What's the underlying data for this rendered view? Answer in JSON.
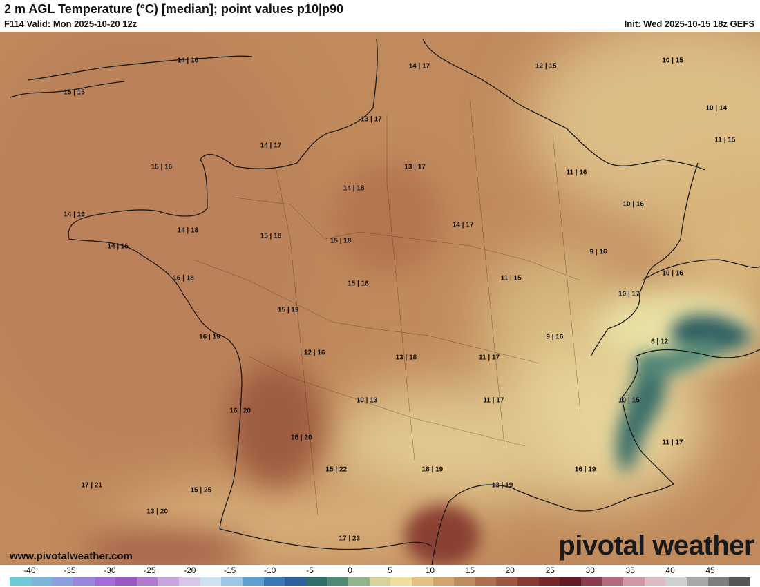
{
  "header": {
    "title": "2 m AGL Temperature (°C) [median]; point values p10|p90",
    "valid": "F114 Valid: Mon 2025-10-20 12z",
    "init": "Init: Wed 2025-10-15 18z GEFS"
  },
  "footer": {
    "website": "www.pivotalweather.com",
    "brand": "pivotal weather"
  },
  "point_values": [
    {
      "label": "14 | 16",
      "lon": -1.6,
      "lat": 51.0
    },
    {
      "label": "15 | 15",
      "lon": -4.2,
      "lat": 50.4
    },
    {
      "label": "14 | 17",
      "lon": 3.7,
      "lat": 50.9
    },
    {
      "label": "12 | 15",
      "lon": 6.6,
      "lat": 50.9
    },
    {
      "label": "10 | 15",
      "lon": 9.5,
      "lat": 51.0
    },
    {
      "label": "10 | 14",
      "lon": 10.5,
      "lat": 50.1
    },
    {
      "label": "13 | 17",
      "lon": 2.6,
      "lat": 49.9
    },
    {
      "label": "11 | 15",
      "lon": 10.7,
      "lat": 49.5
    },
    {
      "label": "14 | 17",
      "lon": 0.3,
      "lat": 49.4
    },
    {
      "label": "15 | 16",
      "lon": -2.2,
      "lat": 49.0
    },
    {
      "label": "13 | 17",
      "lon": 3.6,
      "lat": 49.0
    },
    {
      "label": "11 | 16",
      "lon": 7.3,
      "lat": 48.9
    },
    {
      "label": "14 | 18",
      "lon": 2.2,
      "lat": 48.6
    },
    {
      "label": "10 | 16",
      "lon": 8.6,
      "lat": 48.3
    },
    {
      "label": "14 | 16",
      "lon": -4.2,
      "lat": 48.1
    },
    {
      "label": "14 | 18",
      "lon": -1.6,
      "lat": 47.8
    },
    {
      "label": "15 | 18",
      "lon": 0.3,
      "lat": 47.7
    },
    {
      "label": "15 | 18",
      "lon": 1.9,
      "lat": 47.6
    },
    {
      "label": "14 | 17",
      "lon": 4.7,
      "lat": 47.9
    },
    {
      "label": "14 | 16",
      "lon": -3.2,
      "lat": 47.5
    },
    {
      "label": "9 | 16",
      "lon": 7.8,
      "lat": 47.4
    },
    {
      "label": "16 | 18",
      "lon": -1.7,
      "lat": 46.9
    },
    {
      "label": "11 | 15",
      "lon": 5.8,
      "lat": 46.9
    },
    {
      "label": "15 | 18",
      "lon": 2.3,
      "lat": 46.8
    },
    {
      "label": "10 | 16",
      "lon": 9.5,
      "lat": 47.0
    },
    {
      "label": "10 | 17",
      "lon": 8.5,
      "lat": 46.6
    },
    {
      "label": "15 | 19",
      "lon": 0.7,
      "lat": 46.3
    },
    {
      "label": "16 | 19",
      "lon": -1.1,
      "lat": 45.8
    },
    {
      "label": "9 | 16",
      "lon": 6.8,
      "lat": 45.8
    },
    {
      "label": "6 | 12",
      "lon": 9.2,
      "lat": 45.7
    },
    {
      "label": "12 | 16",
      "lon": 1.3,
      "lat": 45.5
    },
    {
      "label": "13 | 18",
      "lon": 3.4,
      "lat": 45.4
    },
    {
      "label": "11 | 17",
      "lon": 5.3,
      "lat": 45.4
    },
    {
      "label": "10 | 13",
      "lon": 2.5,
      "lat": 44.6
    },
    {
      "label": "11 | 17",
      "lon": 5.4,
      "lat": 44.6
    },
    {
      "label": "10 | 15",
      "lon": 8.5,
      "lat": 44.6
    },
    {
      "label": "16 | 20",
      "lon": -0.4,
      "lat": 44.4
    },
    {
      "label": "16 | 20",
      "lon": 1.0,
      "lat": 43.9
    },
    {
      "label": "11 | 17",
      "lon": 9.5,
      "lat": 43.8
    },
    {
      "label": "15 | 22",
      "lon": 1.8,
      "lat": 43.3
    },
    {
      "label": "18 | 19",
      "lon": 4.0,
      "lat": 43.3
    },
    {
      "label": "16 | 19",
      "lon": 7.5,
      "lat": 43.3
    },
    {
      "label": "13 | 19",
      "lon": 5.6,
      "lat": 43.0
    },
    {
      "label": "17 | 21",
      "lon": -3.8,
      "lat": 43.0
    },
    {
      "label": "15 | 25",
      "lon": -1.3,
      "lat": 42.9
    },
    {
      "label": "13 | 20",
      "lon": -2.3,
      "lat": 42.5
    },
    {
      "label": "17 | 23",
      "lon": 2.1,
      "lat": 42.0
    }
  ],
  "colorbar": {
    "unit": "°C",
    "ticks": [
      "-40",
      "-35",
      "-30",
      "-25",
      "-20",
      "-15",
      "-10",
      "-5",
      "0",
      "5",
      "10",
      "15",
      "20",
      "25",
      "30",
      "35",
      "40",
      "45"
    ],
    "min": -42.5,
    "max": 50,
    "colors": [
      "#6ecbd6",
      "#7cb5dc",
      "#8a9ee0",
      "#9a85df",
      "#a46cda",
      "#9a57c6",
      "#b07acf",
      "#c7a3df",
      "#d9c7ea",
      "#cfe0ee",
      "#9dc6e4",
      "#5f9fcf",
      "#3a78b8",
      "#2e5f9e",
      "#2f6f6a",
      "#4f8a74",
      "#92b48d",
      "#d7d29a",
      "#efdf9f",
      "#e2c183",
      "#d0a46c",
      "#bf8a5c",
      "#b07050",
      "#9d5541",
      "#8a3a32",
      "#77262a",
      "#631a24",
      "#8c3a4d",
      "#b46a7c",
      "#cf97a5",
      "#dcbcc2",
      "#cfcfcf",
      "#a8a8a8",
      "#7f7f7f",
      "#555555"
    ]
  },
  "colors": {
    "land_warm": "#c48f5f",
    "land_hot": "#9e5a3d",
    "land_cool": "#e3c98e",
    "alpine_cold": "#2f6a6a",
    "borders": "#1a1a1a"
  }
}
